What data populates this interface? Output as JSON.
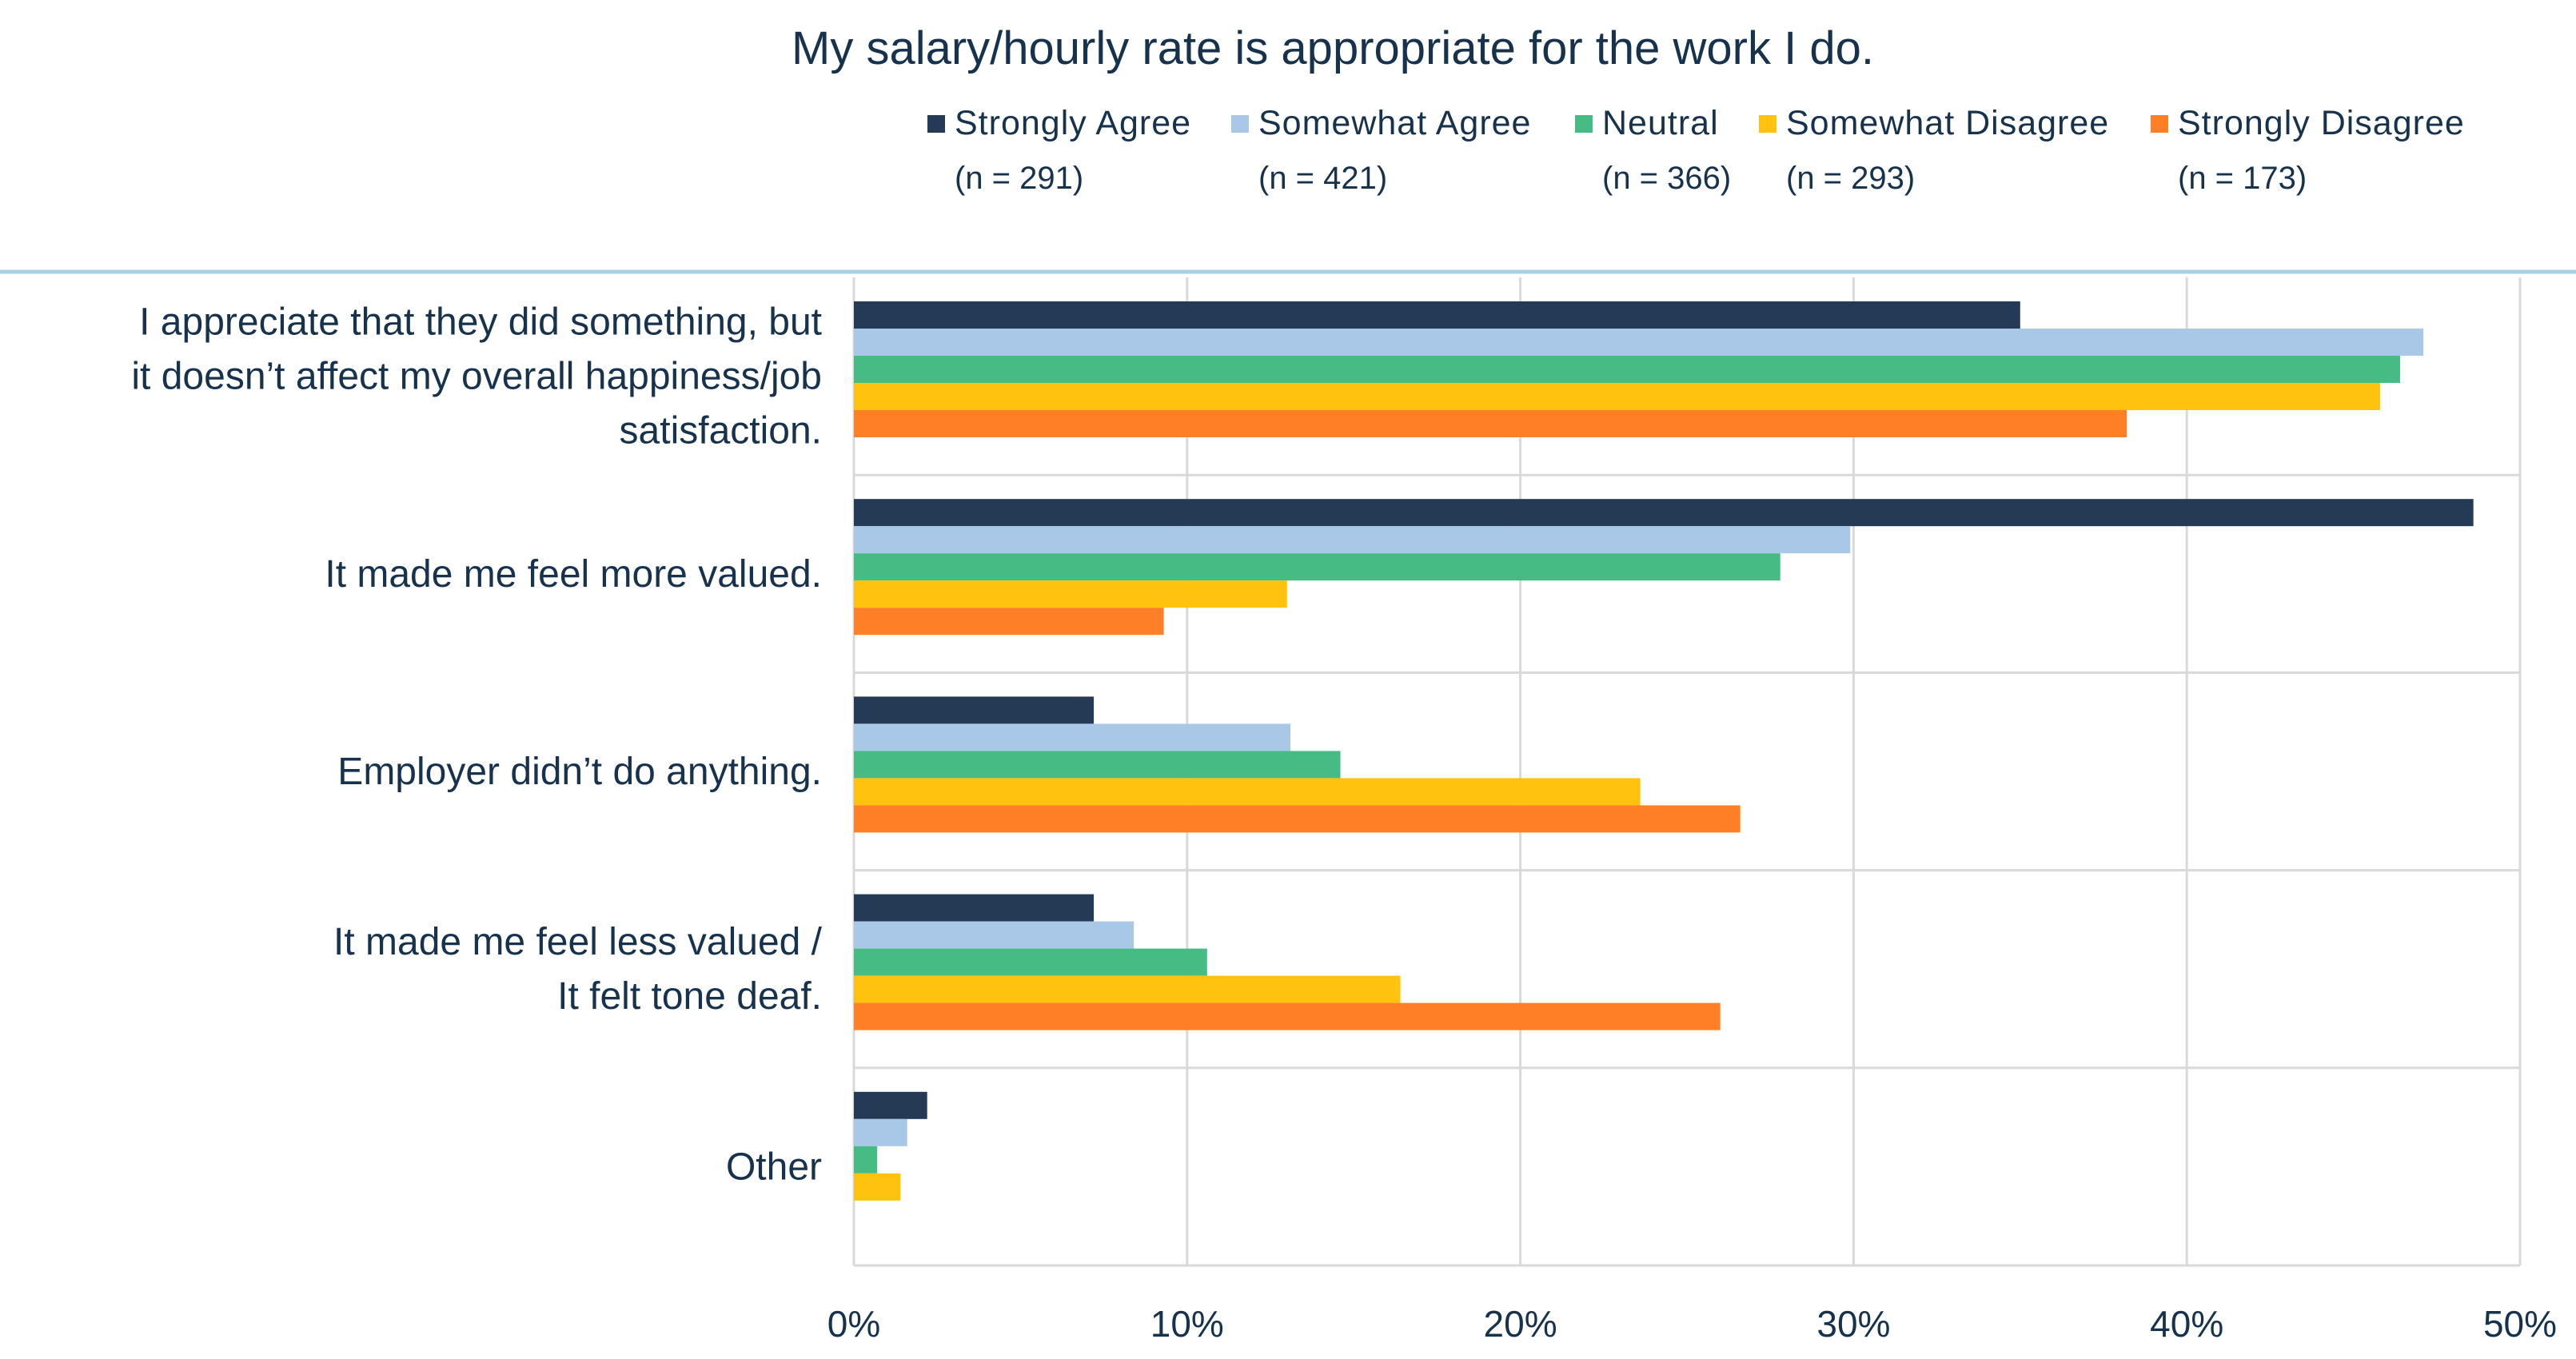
{
  "chart_data": {
    "type": "bar",
    "orientation": "horizontal",
    "title": "My salary/hourly rate is appropriate for the work I do.",
    "categories": [
      [
        "I appreciate that they did something, but",
        "it doesn’t affect my overall happiness/job",
        "satisfaction."
      ],
      [
        "It made me feel more valued."
      ],
      [
        "Employer didn’t do anything."
      ],
      [
        "It made me feel less valued /",
        "It felt tone deaf."
      ],
      [
        "Other"
      ]
    ],
    "series": [
      {
        "name": "Strongly Agree",
        "n": "(n = 291)",
        "color": "#243a55",
        "values": [
          35.0,
          48.6,
          7.2,
          7.2,
          2.2
        ]
      },
      {
        "name": "Somewhat Agree",
        "n": "(n = 421)",
        "color": "#a9c8e8",
        "values": [
          47.1,
          29.9,
          13.1,
          8.4,
          1.6
        ]
      },
      {
        "name": "Neutral",
        "n": "(n = 366)",
        "color": "#47bb84",
        "values": [
          46.4,
          27.8,
          14.6,
          10.6,
          0.7
        ]
      },
      {
        "name": "Somewhat Disagree",
        "n": "(n = 293)",
        "color": "#ffc20e",
        "values": [
          45.8,
          13.0,
          23.6,
          16.4,
          1.4
        ]
      },
      {
        "name": "Strongly Disagree",
        "n": "(n = 173)",
        "color": "#ff7f27",
        "values": [
          38.2,
          9.3,
          26.6,
          26.0,
          0
        ]
      }
    ],
    "xlim": [
      0,
      50
    ],
    "xticks": [
      "0%",
      "10%",
      "20%",
      "30%",
      "40%",
      "50%"
    ],
    "legend_position": "top",
    "grid": true
  }
}
